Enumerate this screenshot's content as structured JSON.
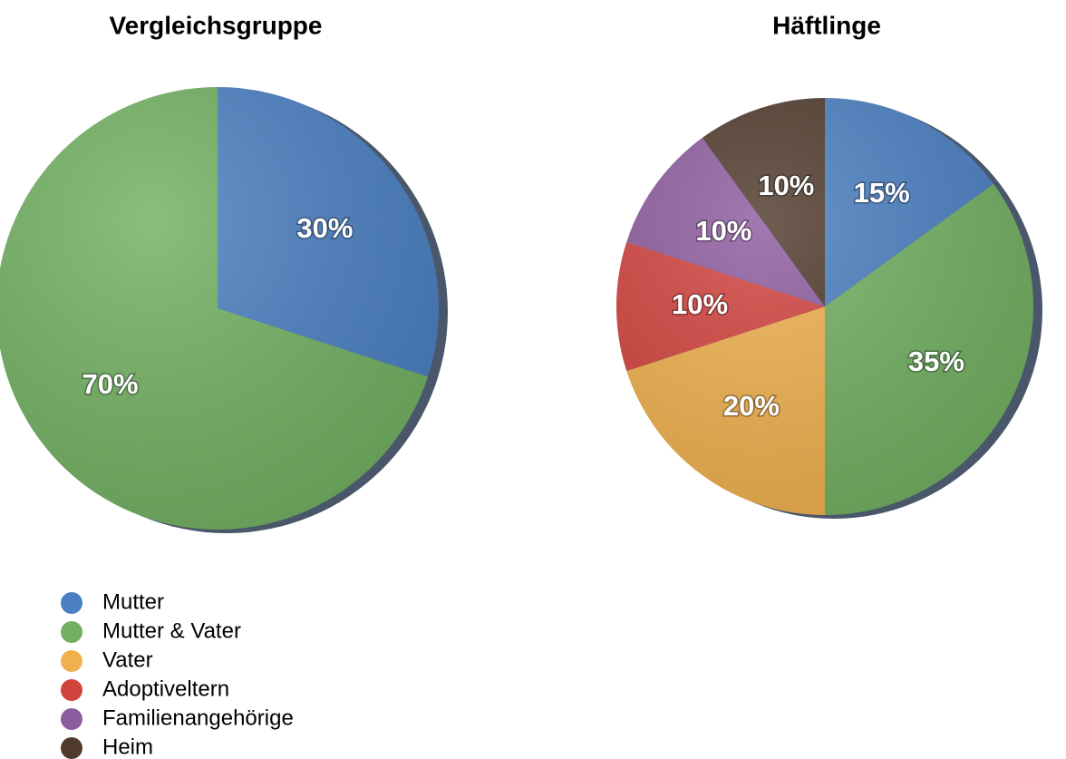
{
  "chart_data": [
    {
      "type": "pie",
      "title": "Vergleichsgruppe",
      "categories": [
        "Mutter",
        "Mutter & Vater"
      ],
      "values": [
        30,
        70
      ],
      "value_labels": [
        "30%",
        "70%"
      ],
      "colors": [
        "#4a7fc1",
        "#72b062"
      ]
    },
    {
      "type": "pie",
      "title": "Häftlinge",
      "categories": [
        "Mutter",
        "Mutter & Vater",
        "Vater",
        "Adoptiveltern",
        "Familienangehörige",
        "Heim"
      ],
      "values": [
        15,
        35,
        20,
        10,
        10,
        10
      ],
      "value_labels": [
        "15%",
        "35%",
        "20%",
        "10%",
        "10%",
        "10%"
      ],
      "colors": [
        "#4a7fc1",
        "#72b062",
        "#f0b04e",
        "#d2433e",
        "#8d5c9f",
        "#4f3a2b"
      ]
    }
  ]
}
